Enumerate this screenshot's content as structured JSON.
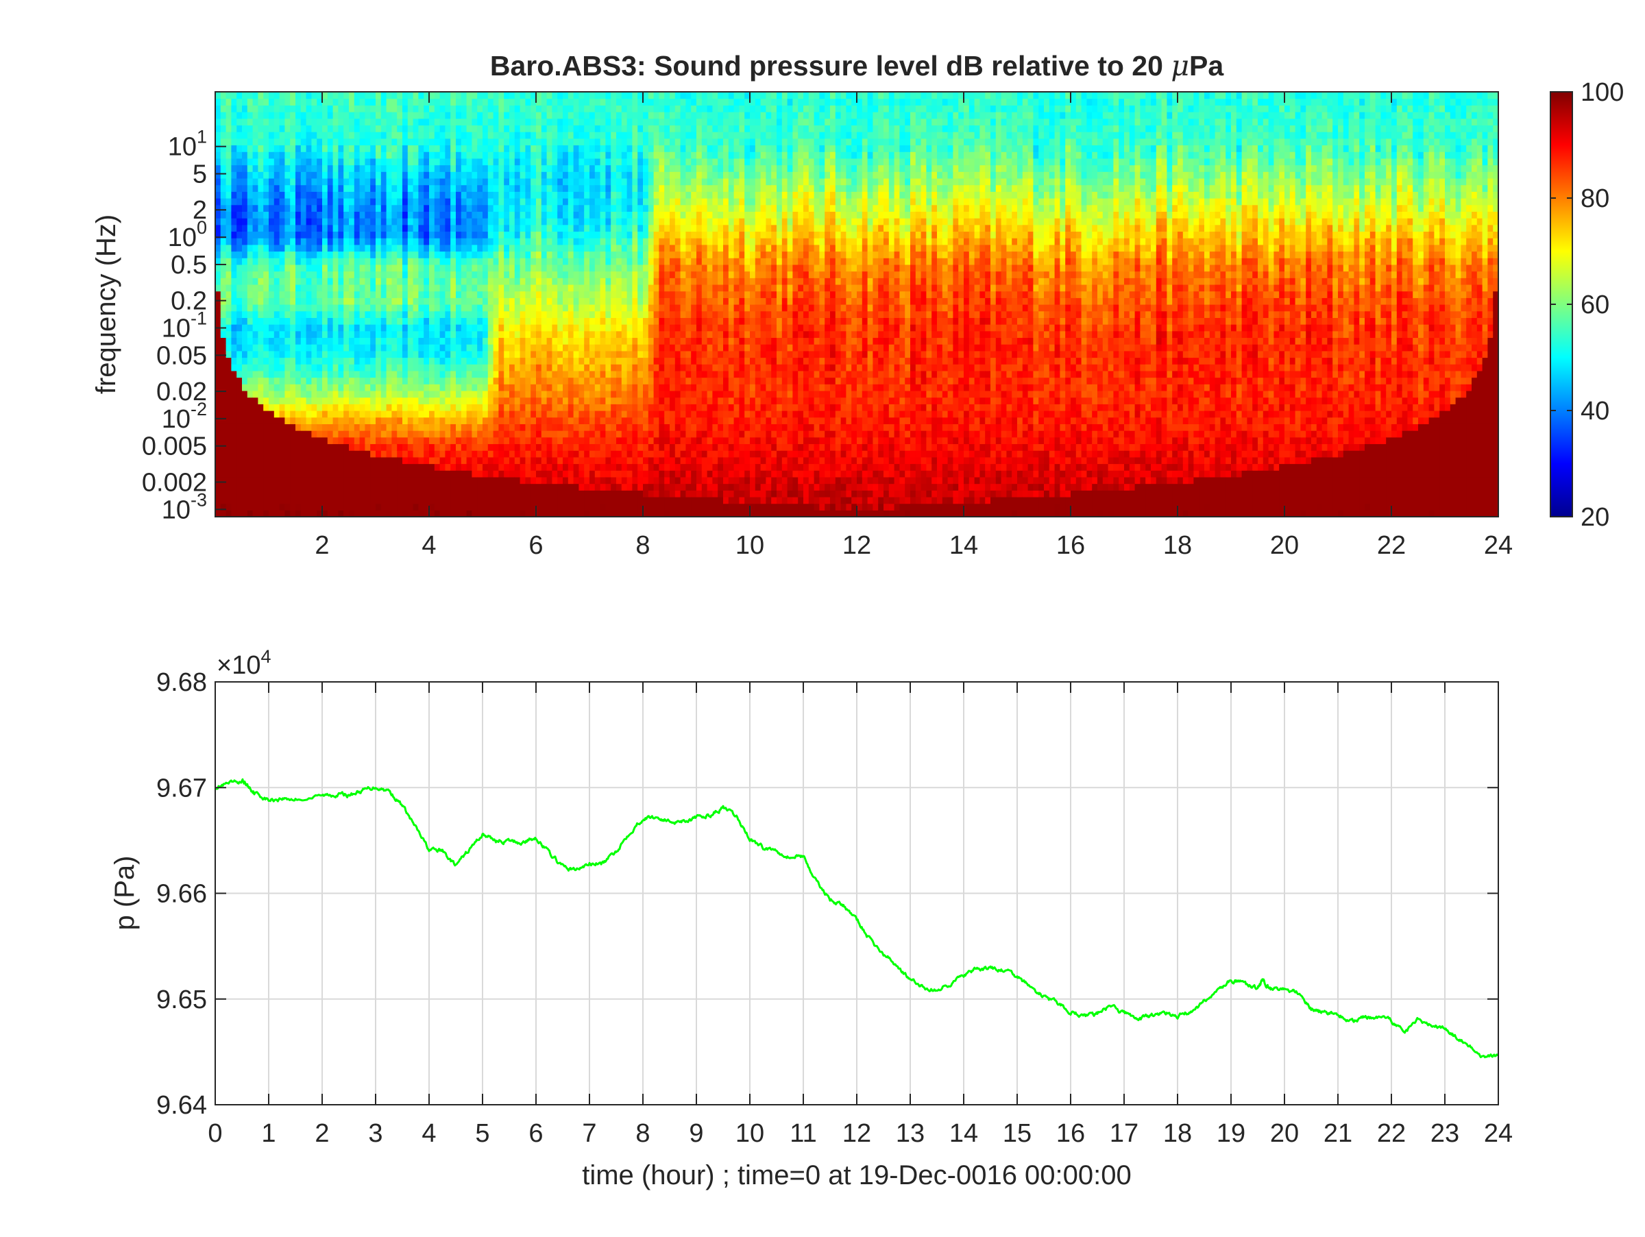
{
  "chart_data": [
    {
      "type": "heatmap",
      "title": "Baro.ABS3: Sound pressure level dB relative to 20 μPa",
      "title_prefix": "Baro.ABS3: Sound pressure level dB relative to 20 ",
      "title_unit_mu": "μ",
      "title_unit_rest": "Pa",
      "ylabel": "frequency (Hz)",
      "xlim": [
        0,
        24
      ],
      "x_ticks": [
        2,
        4,
        6,
        8,
        10,
        12,
        14,
        16,
        18,
        20,
        22,
        24
      ],
      "y_scale": "log",
      "ylim": [
        0.00083,
        40
      ],
      "y_ticks": [
        {
          "value": 10,
          "label": "10",
          "exp": "1"
        },
        {
          "value": 5,
          "label": "5",
          "exp": ""
        },
        {
          "value": 2,
          "label": "2",
          "exp": ""
        },
        {
          "value": 1,
          "label": "10",
          "exp": "0"
        },
        {
          "value": 0.5,
          "label": "0.5",
          "exp": ""
        },
        {
          "value": 0.2,
          "label": "0.2",
          "exp": ""
        },
        {
          "value": 0.1,
          "label": "10",
          "exp": "-1"
        },
        {
          "value": 0.05,
          "label": "0.05",
          "exp": ""
        },
        {
          "value": 0.02,
          "label": "0.02",
          "exp": ""
        },
        {
          "value": 0.01,
          "label": "10",
          "exp": "-2"
        },
        {
          "value": 0.005,
          "label": "0.005",
          "exp": ""
        },
        {
          "value": 0.002,
          "label": "0.002",
          "exp": ""
        },
        {
          "value": 0.001,
          "label": "10",
          "exp": "-3"
        }
      ],
      "colormap": "jet",
      "colorbar": {
        "range": [
          20,
          100
        ],
        "ticks": [
          20,
          40,
          60,
          80,
          100
        ]
      },
      "level_profile": {
        "frequencies": [
          0.001,
          0.002,
          0.005,
          0.01,
          0.02,
          0.05,
          0.1,
          0.2,
          0.5,
          1,
          2,
          5,
          10,
          30
        ],
        "hours_0_5": [
          96,
          92,
          86,
          76,
          62,
          50,
          48,
          58,
          56,
          40,
          40,
          46,
          52,
          54
        ],
        "hours_5_8": [
          95,
          92,
          88,
          84,
          80,
          76,
          72,
          66,
          60,
          54,
          50,
          50,
          53,
          54
        ],
        "hours_8_24": [
          95,
          93,
          90,
          88,
          87,
          87,
          86,
          84,
          80,
          74,
          68,
          60,
          55,
          53
        ]
      }
    },
    {
      "type": "line",
      "ylabel": "p (Pa)",
      "xlabel": "time (hour) ; time=0 at 19-Dec-0016 00:00:00",
      "xlim": [
        0,
        24
      ],
      "x_ticks": [
        0,
        1,
        2,
        3,
        4,
        5,
        6,
        7,
        8,
        9,
        10,
        11,
        12,
        13,
        14,
        15,
        16,
        17,
        18,
        19,
        20,
        21,
        22,
        23,
        24
      ],
      "ylim": [
        96400,
        96800
      ],
      "y_ticks": [
        {
          "value": 96400,
          "label": "9.64"
        },
        {
          "value": 96500,
          "label": "9.65"
        },
        {
          "value": 96600,
          "label": "9.66"
        },
        {
          "value": 96700,
          "label": "9.67"
        },
        {
          "value": 96800,
          "label": "9.68"
        }
      ],
      "y_multiplier_base": "×10",
      "y_multiplier_exp": "4",
      "grid": true,
      "series": [
        {
          "color": "#00ff00",
          "x": [
            0,
            0.25,
            0.5,
            0.6,
            0.75,
            1,
            1.25,
            1.5,
            2,
            2.25,
            2.5,
            2.75,
            3,
            3.25,
            3.5,
            3.75,
            4,
            4.25,
            4.5,
            4.75,
            5,
            5.25,
            5.5,
            5.75,
            6,
            6.25,
            6.5,
            6.75,
            7,
            7.25,
            7.5,
            7.75,
            8,
            8.25,
            8.5,
            8.75,
            9,
            9.25,
            9.5,
            9.75,
            10,
            10.25,
            10.5,
            10.75,
            11,
            11.25,
            11.5,
            11.75,
            12,
            12.25,
            12.5,
            12.75,
            13,
            13.25,
            13.5,
            13.75,
            14,
            14.25,
            14.5,
            14.75,
            15,
            15.25,
            15.5,
            15.75,
            16,
            16.25,
            16.5,
            16.75,
            17,
            17.25,
            17.5,
            17.75,
            18,
            18.25,
            18.5,
            18.75,
            19,
            19.25,
            19.5,
            19.6,
            19.75,
            20,
            20.25,
            20.5,
            20.75,
            21,
            21.25,
            21.5,
            21.75,
            22,
            22.25,
            22.5,
            22.75,
            23,
            23.25,
            23.5,
            23.75,
            24
          ],
          "y": [
            96701,
            96703,
            96706,
            96702,
            96695,
            96688,
            96690,
            96689,
            96692,
            96694,
            96693,
            96697,
            96701,
            96697,
            96683,
            96662,
            96641,
            96640,
            96626,
            96641,
            96656,
            96650,
            96649,
            96648,
            96653,
            96638,
            96625,
            96622,
            96628,
            96628,
            96640,
            96658,
            96671,
            96672,
            96668,
            96669,
            96671,
            96674,
            96681,
            96672,
            96652,
            96643,
            96641,
            96634,
            96636,
            96610,
            96595,
            96588,
            96575,
            96556,
            96542,
            96532,
            96518,
            96511,
            96508,
            96515,
            96522,
            96528,
            96529,
            96527,
            96521,
            96511,
            96502,
            96496,
            96488,
            96484,
            96486,
            96493,
            96487,
            96481,
            96484,
            96487,
            96484,
            96488,
            96498,
            96508,
            96518,
            96514,
            96510,
            96517,
            96510,
            96510,
            96505,
            96490,
            96487,
            96486,
            96478,
            96483,
            96481,
            96479,
            96468,
            96482,
            96475,
            96472,
            96462,
            96453,
            96443,
            96448
          ]
        }
      ]
    }
  ]
}
